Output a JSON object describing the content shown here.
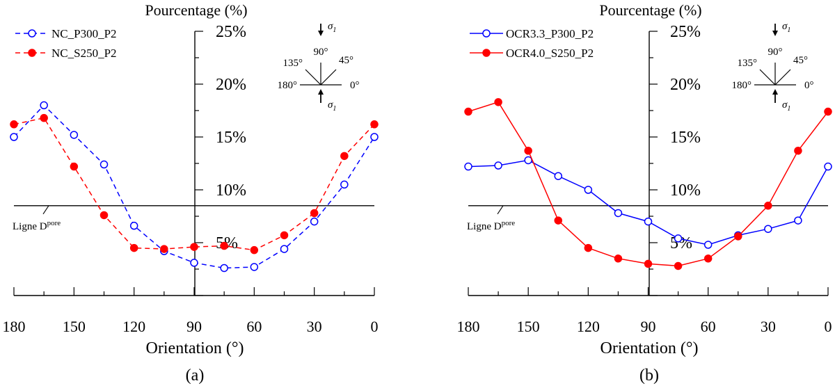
{
  "chart_data": [
    {
      "type": "line",
      "panel_label": "(a)",
      "xlabel": "Orientation (°)",
      "ylabel": "Pourcentage (%)",
      "x_ticks": [
        "180",
        "150",
        "120",
        "90",
        "60",
        "30",
        "0"
      ],
      "xlim": [
        180,
        0
      ],
      "y_ticks": [
        "5%",
        "10%",
        "15%",
        "20%",
        "25%"
      ],
      "ylim": [
        0,
        25
      ],
      "line_label_main": "Ligne D",
      "line_label_sup": "pore",
      "line_value": 8.5,
      "inset": {
        "a90": "90°",
        "a45": "45°",
        "a135": "135°",
        "a180": "180°",
        "a0": "0°",
        "sigma": "σ",
        "sigma_sub": "1"
      },
      "series": [
        {
          "name": "NC_P300_P2",
          "color": "#0000ff",
          "dashed": true,
          "filled": false,
          "x": [
            180,
            165,
            150,
            135,
            120,
            105,
            90,
            75,
            60,
            45,
            30,
            15,
            0
          ],
          "values": [
            15,
            18,
            15.2,
            12.4,
            6.6,
            4.2,
            3.1,
            2.6,
            2.7,
            4.4,
            7,
            10.5,
            15
          ]
        },
        {
          "name": "NC_S250_P2",
          "color": "#ff0000",
          "dashed": true,
          "filled": true,
          "x": [
            180,
            165,
            150,
            135,
            120,
            105,
            90,
            75,
            60,
            45,
            30,
            15,
            0
          ],
          "values": [
            16.2,
            16.8,
            12.2,
            7.6,
            4.5,
            4.4,
            4.6,
            4.7,
            4.3,
            5.7,
            7.8,
            13.2,
            16.2
          ]
        }
      ]
    },
    {
      "type": "line",
      "panel_label": "(b)",
      "xlabel": "Orientation (°)",
      "ylabel": "Pourcentage (%)",
      "x_ticks": [
        "180",
        "150",
        "120",
        "90",
        "60",
        "30",
        "0"
      ],
      "xlim": [
        180,
        0
      ],
      "y_ticks": [
        "5%",
        "10%",
        "15%",
        "20%",
        "25%"
      ],
      "ylim": [
        0,
        25
      ],
      "line_label_main": "Ligne D",
      "line_label_sup": "pore",
      "line_value": 8.5,
      "inset": {
        "a90": "90°",
        "a45": "45°",
        "a135": "135°",
        "a180": "180°",
        "a0": "0°",
        "sigma": "σ",
        "sigma_sub": "1"
      },
      "series": [
        {
          "name": "OCR3.3_P300_P2",
          "color": "#0000ff",
          "dashed": false,
          "filled": false,
          "x": [
            180,
            165,
            150,
            135,
            120,
            105,
            90,
            75,
            60,
            45,
            30,
            15,
            0
          ],
          "values": [
            12.2,
            12.3,
            12.8,
            11.3,
            10,
            7.8,
            7,
            5.4,
            4.8,
            5.7,
            6.3,
            7.1,
            12.2
          ]
        },
        {
          "name": "OCR4.0_S250_P2",
          "color": "#ff0000",
          "dashed": false,
          "filled": true,
          "x": [
            180,
            165,
            150,
            135,
            120,
            105,
            90,
            75,
            60,
            45,
            30,
            15,
            0
          ],
          "values": [
            17.4,
            18.3,
            13.7,
            7.1,
            4.5,
            3.5,
            3,
            2.8,
            3.5,
            5.6,
            8.5,
            13.7,
            17.4
          ]
        }
      ]
    }
  ]
}
